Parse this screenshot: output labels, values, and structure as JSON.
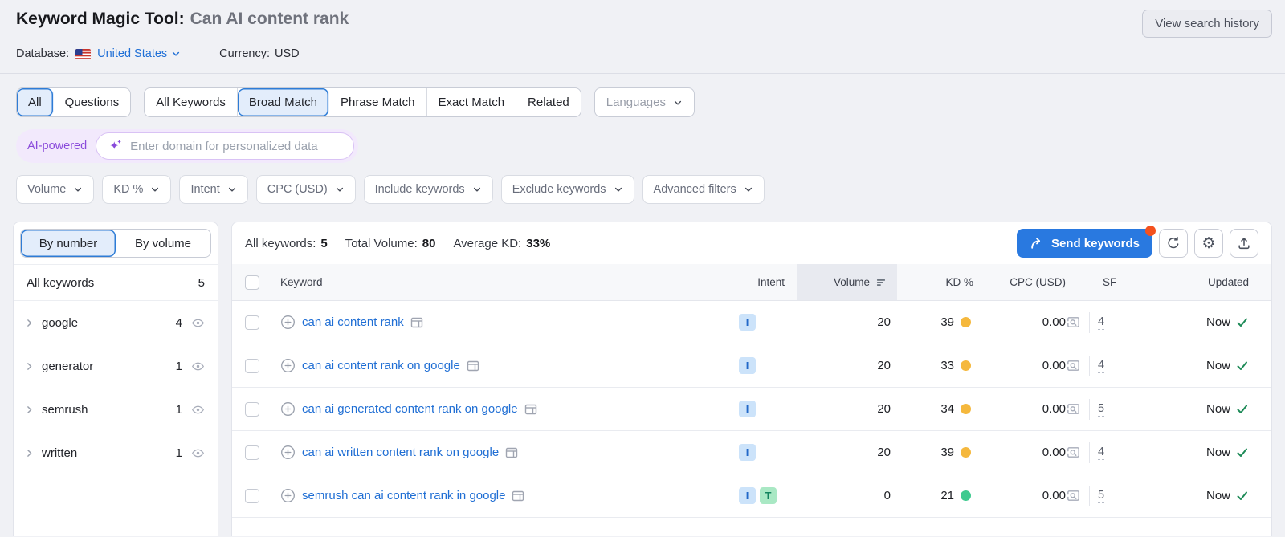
{
  "header": {
    "title": "Keyword Magic Tool:",
    "query": "Can AI content rank",
    "view_search_history": "View search history",
    "database_label": "Database:",
    "database_value": "United States",
    "currency_label": "Currency:",
    "currency_value": "USD"
  },
  "tabs": {
    "group1": [
      {
        "label": "All",
        "selected": true
      },
      {
        "label": "Questions",
        "selected": false
      }
    ],
    "group2": [
      {
        "label": "All Keywords",
        "selected": false
      },
      {
        "label": "Broad Match",
        "selected": true
      },
      {
        "label": "Phrase Match",
        "selected": false
      },
      {
        "label": "Exact Match",
        "selected": false
      },
      {
        "label": "Related",
        "selected": false
      }
    ],
    "languages_label": "Languages"
  },
  "ai_bar": {
    "badge": "AI-powered",
    "placeholder": "Enter domain for personalized data"
  },
  "filters": [
    {
      "label": "Volume"
    },
    {
      "label": "KD %"
    },
    {
      "label": "Intent"
    },
    {
      "label": "CPC (USD)"
    },
    {
      "label": "Include keywords"
    },
    {
      "label": "Exclude keywords"
    },
    {
      "label": "Advanced filters"
    }
  ],
  "sidebar": {
    "toggle": [
      {
        "label": "By number",
        "selected": true
      },
      {
        "label": "By volume",
        "selected": false
      }
    ],
    "all_keywords": {
      "label": "All keywords",
      "count": "5"
    },
    "groups": [
      {
        "label": "google",
        "count": "4"
      },
      {
        "label": "generator",
        "count": "1"
      },
      {
        "label": "semrush",
        "count": "1"
      },
      {
        "label": "written",
        "count": "1"
      }
    ]
  },
  "toolbar": {
    "summary": [
      {
        "label": "All keywords:",
        "value": "5"
      },
      {
        "label": "Total Volume:",
        "value": "80"
      },
      {
        "label": "Average KD:",
        "value": "33%"
      }
    ],
    "send_keywords_label": "Send keywords"
  },
  "table": {
    "columns": {
      "keyword": "Keyword",
      "intent": "Intent",
      "volume": "Volume",
      "kd": "KD %",
      "cpc": "CPC (USD)",
      "sf": "SF",
      "updated": "Updated"
    },
    "rows": [
      {
        "keyword": "can ai content rank",
        "intents": [
          "I"
        ],
        "volume": "20",
        "kd": "39",
        "kd_color": "#f5b83d",
        "cpc": "0.00",
        "sf": "4",
        "updated": "Now"
      },
      {
        "keyword": "can ai content rank on google",
        "intents": [
          "I"
        ],
        "volume": "20",
        "kd": "33",
        "kd_color": "#f5b83d",
        "cpc": "0.00",
        "sf": "4",
        "updated": "Now"
      },
      {
        "keyword": "can ai generated content rank on google",
        "intents": [
          "I"
        ],
        "volume": "20",
        "kd": "34",
        "kd_color": "#f5b83d",
        "cpc": "0.00",
        "sf": "5",
        "updated": "Now"
      },
      {
        "keyword": "can ai written content rank on google",
        "intents": [
          "I"
        ],
        "volume": "20",
        "kd": "39",
        "kd_color": "#f5b83d",
        "cpc": "0.00",
        "sf": "4",
        "updated": "Now"
      },
      {
        "keyword": "semrush can ai content rank in google",
        "intents": [
          "I",
          "T"
        ],
        "volume": "0",
        "kd": "21",
        "kd_color": "#3fca8f",
        "cpc": "0.00",
        "sf": "5",
        "updated": "Now"
      }
    ]
  },
  "icons": {
    "us-flag-icon": "us-flag",
    "chevron-down-icon": "chevron-down",
    "chevron-right-icon": "chevron-right",
    "sparkle-icon": "ai-sparkle",
    "eye-icon": "eye",
    "send-arrow-icon": "arrow-curved-right",
    "refresh-icon": "circular-arrow",
    "settings-icon": "gear",
    "export-icon": "upload-tray",
    "sort-icon": "sort-descending-bars",
    "add-keyword-icon": "plus-circle",
    "serp-icon": "browser-window",
    "serp-preview-icon": "window-magnifier",
    "check-icon": "checkmark"
  },
  "colors": {
    "accent_blue": "#2e7cd6",
    "link_blue": "#1f6ed4",
    "send_button_blue": "#2979e0",
    "notification_orange": "#f4511e",
    "ai_purple": "#8a4bdb",
    "kd_medium_dot": "#f5b83d",
    "kd_easy_dot": "#3fca8f",
    "check_green": "#1d8a57",
    "intent_i_bg": "#cce3fa",
    "intent_t_bg": "#a9e8c4"
  }
}
